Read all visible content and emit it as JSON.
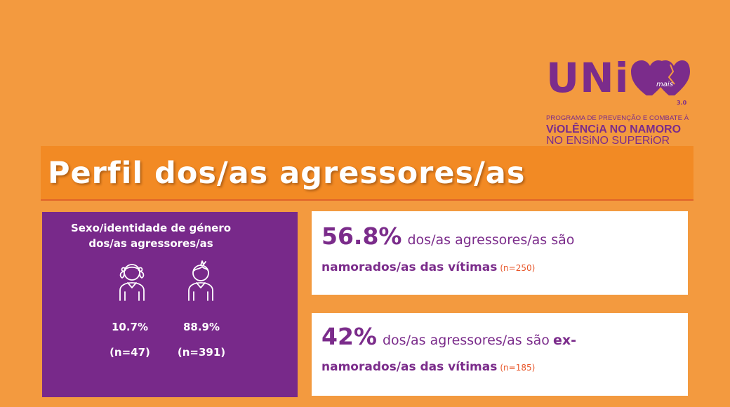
{
  "logo": {
    "word": "UNi",
    "hearts_text": "mais",
    "version": "3.0",
    "line1": "PROGRAMA DE PREVENÇÃO E COMBATE À",
    "line2": "ViOLÊNCiA NO NAMORO",
    "line3": "NO ENSiNO SUPERiOR"
  },
  "title": "Perfil dos/as agressores/as",
  "gender_panel": {
    "heading_line1": "Sexo/identidade de género",
    "heading_line2": "dos/as agressores/as",
    "female": {
      "icon": "female-person-icon",
      "percent": "10.7%",
      "n": "(n=47)"
    },
    "male": {
      "icon": "male-person-icon",
      "percent": "88.9%",
      "n": "(n=391)"
    }
  },
  "cards": [
    {
      "big": "56.8%",
      "text1": "dos/as agressores/as são",
      "text1_bold": "",
      "text2_bold": "namorados/as das vítimas",
      "n": "(n=250)"
    },
    {
      "big": "42%",
      "text1": "dos/as agressores/as são",
      "text1_bold": "ex-",
      "text2_bold": "namorados/as das vítimas",
      "n": "(n=185)"
    }
  ],
  "colors": {
    "background": "#F39A3F",
    "title_band": "#F28A24",
    "purple": "#78298A",
    "accent_red": "#E8572A"
  }
}
